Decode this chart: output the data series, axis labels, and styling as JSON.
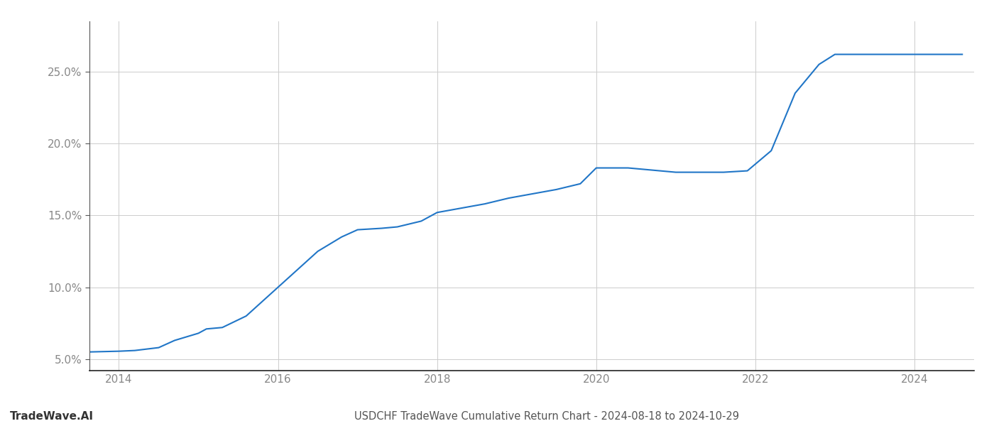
{
  "x": [
    2013.63,
    2014.0,
    2014.2,
    2014.5,
    2014.7,
    2015.0,
    2015.1,
    2015.3,
    2015.6,
    2015.9,
    2016.2,
    2016.5,
    2016.8,
    2017.0,
    2017.3,
    2017.5,
    2017.8,
    2018.0,
    2018.3,
    2018.6,
    2018.9,
    2019.2,
    2019.5,
    2019.8,
    2020.0,
    2020.2,
    2020.4,
    2020.6,
    2020.8,
    2021.0,
    2021.3,
    2021.6,
    2021.9,
    2022.2,
    2022.5,
    2022.8,
    2023.0,
    2023.2,
    2023.5,
    2023.7,
    2024.0,
    2024.3,
    2024.6
  ],
  "y": [
    5.5,
    5.55,
    5.6,
    5.8,
    6.3,
    6.8,
    7.1,
    7.2,
    8.0,
    9.5,
    11.0,
    12.5,
    13.5,
    14.0,
    14.1,
    14.2,
    14.6,
    15.2,
    15.5,
    15.8,
    16.2,
    16.5,
    16.8,
    17.2,
    18.3,
    18.3,
    18.3,
    18.2,
    18.1,
    18.0,
    18.0,
    18.0,
    18.1,
    19.5,
    23.5,
    25.5,
    26.2,
    26.2,
    26.2,
    26.2,
    26.2,
    26.2,
    26.2
  ],
  "line_color": "#2176c7",
  "line_width": 1.5,
  "title": "USDCHF TradeWave Cumulative Return Chart - 2024-08-18 to 2024-10-29",
  "watermark": "TradeWave.AI",
  "xlim": [
    2013.63,
    2024.75
  ],
  "ylim": [
    4.2,
    28.5
  ],
  "yticks": [
    5.0,
    10.0,
    15.0,
    20.0,
    25.0
  ],
  "xticks": [
    2014,
    2016,
    2018,
    2020,
    2022,
    2024
  ],
  "background_color": "#ffffff",
  "grid_color": "#cccccc",
  "title_fontsize": 10.5,
  "tick_fontsize": 11,
  "watermark_fontsize": 11
}
